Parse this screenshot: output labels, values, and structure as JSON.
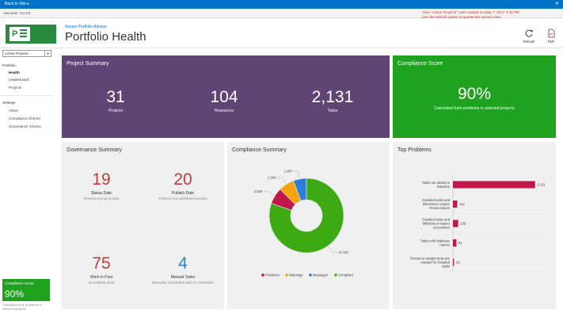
{
  "topbar": {
    "back_label": "Back to Site",
    "close_glyph": "✕"
  },
  "ribbon": {
    "tabs": [
      "BROWSE",
      "FILTER"
    ]
  },
  "header": {
    "subtitle": "Sensei Portfolio Advisor",
    "title": "Portfolio Health",
    "loaded_line1": "View \"Active Projects\" Last Loaded on May 7, 2017 3:45 PM",
    "loaded_line2": "Use the refresh option to update the current view",
    "refresh_label": "Refresh",
    "pdf_label": "PDF"
  },
  "sidebar": {
    "view_select": "Active Projects",
    "portfolio_label": "Portfolio",
    "portfolio_items": [
      "Health",
      "Leaderboard",
      "Projects"
    ],
    "settings_label": "Settings",
    "settings_items": [
      "Views",
      "Compliance Checks",
      "Governance Checks"
    ],
    "mini_label": "Compliance Score",
    "mini_value": "90%",
    "mini_caption": "Calculated from problems in selected projects"
  },
  "project_summary": {
    "title": "Project Summary",
    "stats": [
      {
        "value": "31",
        "label": "Projects"
      },
      {
        "value": "104",
        "label": "Resources"
      },
      {
        "value": "2,131",
        "label": "Tasks"
      }
    ]
  },
  "compliance_score": {
    "title": "Compliance Score",
    "value": "90%",
    "caption": "Calculated from problems in selected projects"
  },
  "governance_summary": {
    "title": "Governance Summary",
    "items": [
      {
        "value": "19",
        "label": "Status Date",
        "sub": "Projects not up to date",
        "color": "#c23b3b"
      },
      {
        "value": "20",
        "label": "Publish Date",
        "sub": "Projects not published recently",
        "color": "#c23b3b"
      },
      {
        "value": "75",
        "label": "Work in Past",
        "sub": "Incomplete work",
        "color": "#c23b3b"
      },
      {
        "value": "4",
        "label": "Manual Tasks",
        "sub": "Manually scheduled tasks in schedules",
        "color": "#2a7fcc"
      }
    ]
  },
  "compliance_summary": {
    "title": "Compliance Summary",
    "chart_data": {
      "type": "pie",
      "donut": true,
      "categories": [
        "Problems",
        "Warnings",
        "Messages",
        "Compliant"
      ],
      "values": [
        2500,
        2340,
        1987,
        27827
      ],
      "value_labels": [
        "2,500",
        "2,340",
        "1,987",
        "27,827"
      ],
      "colors": [
        "#c0174b",
        "#f5a30f",
        "#2a7fd8",
        "#3daa14"
      ],
      "legend": "bottom"
    }
  },
  "top_problems": {
    "title": "Top Problems",
    "chart_data": {
      "type": "bar",
      "orientation": "horizontal",
      "categories": [
        "Tasks not added to Baseline",
        "Detailed tasks and Milestones require Predecessors",
        "Detailed tasks and Milestones require successors",
        "Tasks with duplicate names",
        "Resource assignments are needed for Detailed tasks"
      ],
      "values": [
        2131,
        112,
        136,
        91,
        28
      ],
      "value_labels": [
        "2,131",
        "112",
        "136",
        "91",
        "28"
      ],
      "color": "#c0174b",
      "xlim": [
        0,
        2300
      ]
    }
  }
}
